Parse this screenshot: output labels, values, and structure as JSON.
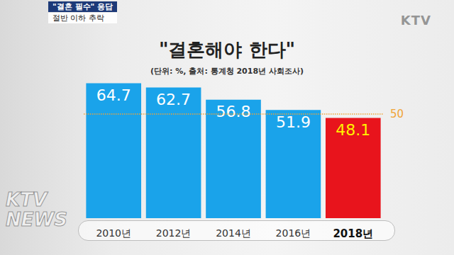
{
  "chart_data": {
    "type": "bar",
    "title": "\"결혼해야 한다\"",
    "subtitle": "(단위: %, 출처: 통계청 2018년 사회조사)",
    "categories": [
      "2010년",
      "2012년",
      "2014년",
      "2016년",
      "2018년"
    ],
    "values": [
      64.7,
      62.7,
      56.8,
      51.9,
      48.1
    ],
    "colors": [
      "#1aa3ea",
      "#1aa3ea",
      "#1aa3ea",
      "#1aa3ea",
      "#e8141c"
    ],
    "ylim": [
      0,
      70
    ],
    "yticks": [
      0,
      70
    ],
    "grid": false,
    "tick_labels": "x",
    "data_labels": true,
    "annotations": [
      {
        "y": 50,
        "label": "50",
        "color": "#f0a437",
        "line_style": "dotted"
      }
    ]
  },
  "overlay": {
    "caption": [
      "\"결혼 필수\" 응답",
      "절반 이하 추락"
    ],
    "logo": "KTV",
    "watermark": [
      "KTV",
      "NEWS"
    ]
  }
}
